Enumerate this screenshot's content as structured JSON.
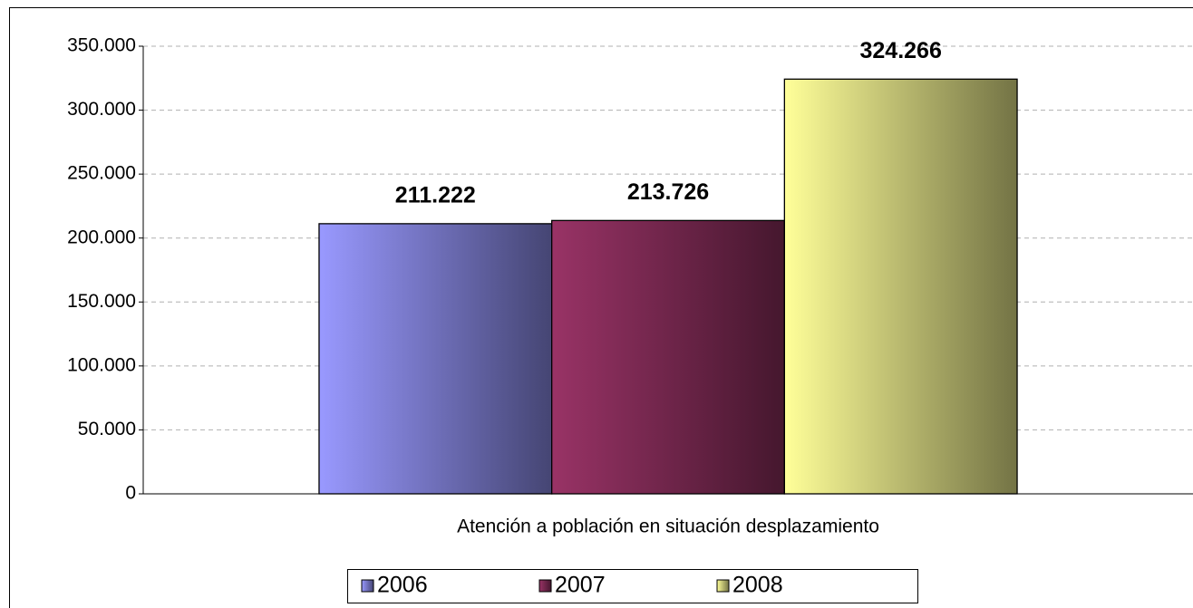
{
  "chart_data": {
    "type": "bar",
    "categories": [
      "Atención a población en situación desplazamiento"
    ],
    "series": [
      {
        "name": "2006",
        "color": "#9999ff",
        "values": [
          211222
        ],
        "value_labels": [
          "211.222"
        ]
      },
      {
        "name": "2007",
        "color": "#993366",
        "values": [
          213726
        ],
        "value_labels": [
          "213.726"
        ]
      },
      {
        "name": "2008",
        "color": "#ffff99",
        "values": [
          324266
        ],
        "value_labels": [
          "324.266"
        ]
      }
    ],
    "ylim": [
      0,
      350000
    ],
    "yticks": [
      0,
      {
        "value": 50000,
        "label": "50.000"
      },
      {
        "value": 100000,
        "label": "100.000"
      },
      {
        "value": 150000,
        "label": "150.000"
      },
      {
        "value": 200000,
        "label": "200.000"
      },
      {
        "value": 250000,
        "label": "250.000"
      },
      {
        "value": 300000,
        "label": "300.000"
      },
      {
        "value": 350000,
        "label": "350.000"
      }
    ],
    "grid": true,
    "legend": "bottom"
  }
}
